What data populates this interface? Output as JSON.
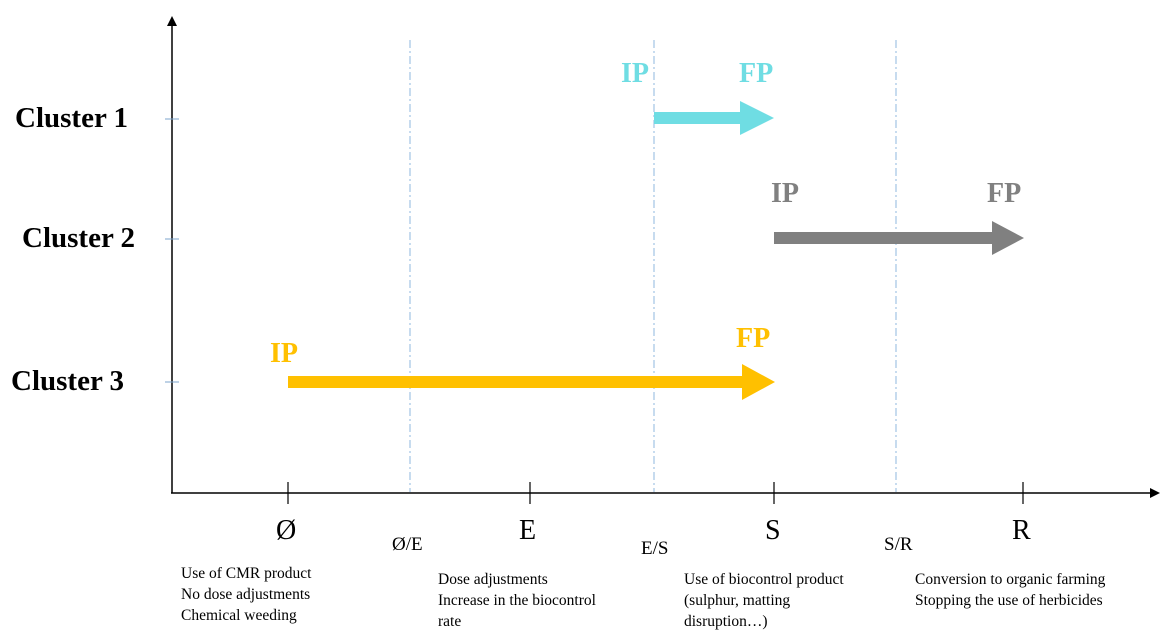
{
  "clusters": [
    {
      "name": "Cluster 1",
      "color": "#6fdde3",
      "start_label": "IP",
      "end_label": "FP",
      "start_stage": "E/S",
      "end_stage": "S"
    },
    {
      "name": "Cluster 2",
      "color": "#808080",
      "start_label": "IP",
      "end_label": "FP",
      "start_stage": "S",
      "end_stage": "R"
    },
    {
      "name": "Cluster 3",
      "color": "#ffc000",
      "start_label": "IP",
      "end_label": "FP",
      "start_stage": "Ø",
      "end_stage": "S"
    }
  ],
  "stages": [
    "Ø",
    "E",
    "S",
    "R"
  ],
  "boundaries": [
    "Ø/E",
    "E/S",
    "S/R"
  ],
  "descriptions": [
    {
      "stage": "Ø",
      "lines": [
        "Use of CMR product",
        "No dose adjustments",
        "Chemical weeding"
      ]
    },
    {
      "stage": "E",
      "lines": [
        "Dose adjustments",
        "Increase in the biocontrol",
        "rate"
      ]
    },
    {
      "stage": "S",
      "lines": [
        "Use of biocontrol product",
        "(sulphur, matting",
        "disruption…)"
      ]
    },
    {
      "stage": "R",
      "lines": [
        "Conversion to organic farming",
        "Stopping the use of herbicides"
      ]
    }
  ]
}
